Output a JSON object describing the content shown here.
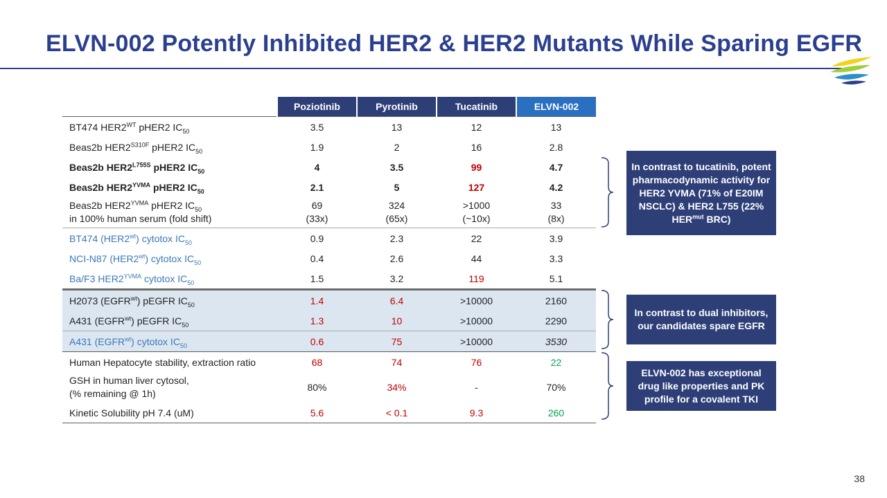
{
  "title": "ELVN-002 Potently Inhibited HER2 & HER2 Mutants While Sparing EGFR",
  "page_number": "38",
  "columns": [
    "Poziotinib",
    "Pyrotinib",
    "Tucatinib",
    "ELVN-002"
  ],
  "rows": {
    "r1": {
      "pre": "BT474 HER2",
      "sup": "WT",
      "mid": " pHER2 IC",
      "sub": "50",
      "v": [
        "3.5",
        "13",
        "12",
        "13"
      ]
    },
    "r2": {
      "pre": "Beas2b HER2",
      "sup": "S310F",
      "mid": " pHER2 IC",
      "sub": "50",
      "v": [
        "1.9",
        "2",
        "16",
        "2.8"
      ]
    },
    "r3": {
      "pre": "Beas2b HER2",
      "sup": "L755S",
      "mid": " pHER2 IC",
      "sub": "50",
      "v": [
        "4",
        "3.5",
        "99",
        "4.7"
      ]
    },
    "r4": {
      "pre": "Beas2b HER2",
      "sup": "YVMA",
      "mid": " pHER2 IC",
      "sub": "50",
      "v": [
        "2.1",
        "5",
        "127",
        "4.2"
      ]
    },
    "r5": {
      "pre": "Beas2b HER2",
      "sup": "YVMA",
      "mid": " pHER2 IC",
      "sub": "50",
      "line2": "in 100% human serum (fold shift)",
      "v": [
        "69",
        "324",
        ">1000",
        "33"
      ],
      "v2": [
        "(33x)",
        "(65x)",
        "(~10x)",
        "(8x)"
      ]
    },
    "r6": {
      "pre": "BT474 (HER2",
      "sup": "wt",
      "mid": ") cytotox IC",
      "sub": "50",
      "v": [
        "0.9",
        "2.3",
        "22",
        "3.9"
      ]
    },
    "r7": {
      "pre": "NCI-N87 (HER2",
      "sup": "wt",
      "mid": ") cytotox IC",
      "sub": "50",
      "v": [
        "0.4",
        "2.6",
        "44",
        "3.3"
      ]
    },
    "r8": {
      "pre": "Ba/F3 HER2",
      "sup": "YVMA",
      "mid": " cytotox IC",
      "sub": "50",
      "v": [
        "1.5",
        "3.2",
        "119",
        "5.1"
      ]
    },
    "r9": {
      "pre": "H2073 (EGFR",
      "sup": "wt",
      "mid": ") pEGFR IC",
      "sub": "50",
      "v": [
        "1.4",
        "6.4",
        ">10000",
        "2160"
      ]
    },
    "r10": {
      "pre": "A431 (EGFR",
      "sup": "wt",
      "mid": ") pEGFR IC",
      "sub": "50",
      "v": [
        "1.3",
        "10",
        ">10000",
        "2290"
      ]
    },
    "r11": {
      "pre": "A431 (EGFR",
      "sup": "wt",
      "mid": ") cytotox IC",
      "sub": "50",
      "v": [
        "0.6",
        "75",
        ">10000",
        "3530"
      ]
    },
    "r12": {
      "label": "Human Hepatocyte stability, extraction ratio",
      "v": [
        "68",
        "74",
        "76",
        "22"
      ]
    },
    "r13": {
      "label": "GSH in human liver cytosol,",
      "line2": "(% remaining @ 1h)",
      "v": [
        "80%",
        "34%",
        "-",
        "70%"
      ]
    },
    "r14": {
      "label": "Kinetic Solubility pH 7.4 (uM)",
      "v": [
        "5.6",
        "< 0.1",
        "9.3",
        "260"
      ]
    }
  },
  "callouts": {
    "c1": {
      "pre": "In contrast to tucatinib, potent pharmacodynamic activity for HER2 YVMA (71% of E20IM NSCLC) & HER2 L755 (22% HER",
      "sup": "mut",
      "post": " BRC)"
    },
    "c2": "In contrast to dual inhibitors, our candidates spare EGFR",
    "c3": "ELVN-002 has exceptional drug like properties and PK profile for a covalent TKI"
  },
  "colors": {
    "title": "#2b3f8f",
    "header": "#2e3f78",
    "elvn_header": "#2a6fc0",
    "red": "#c00000",
    "green": "#00a050",
    "blue_label": "#3a78b7",
    "shade": "#dce6f1"
  }
}
